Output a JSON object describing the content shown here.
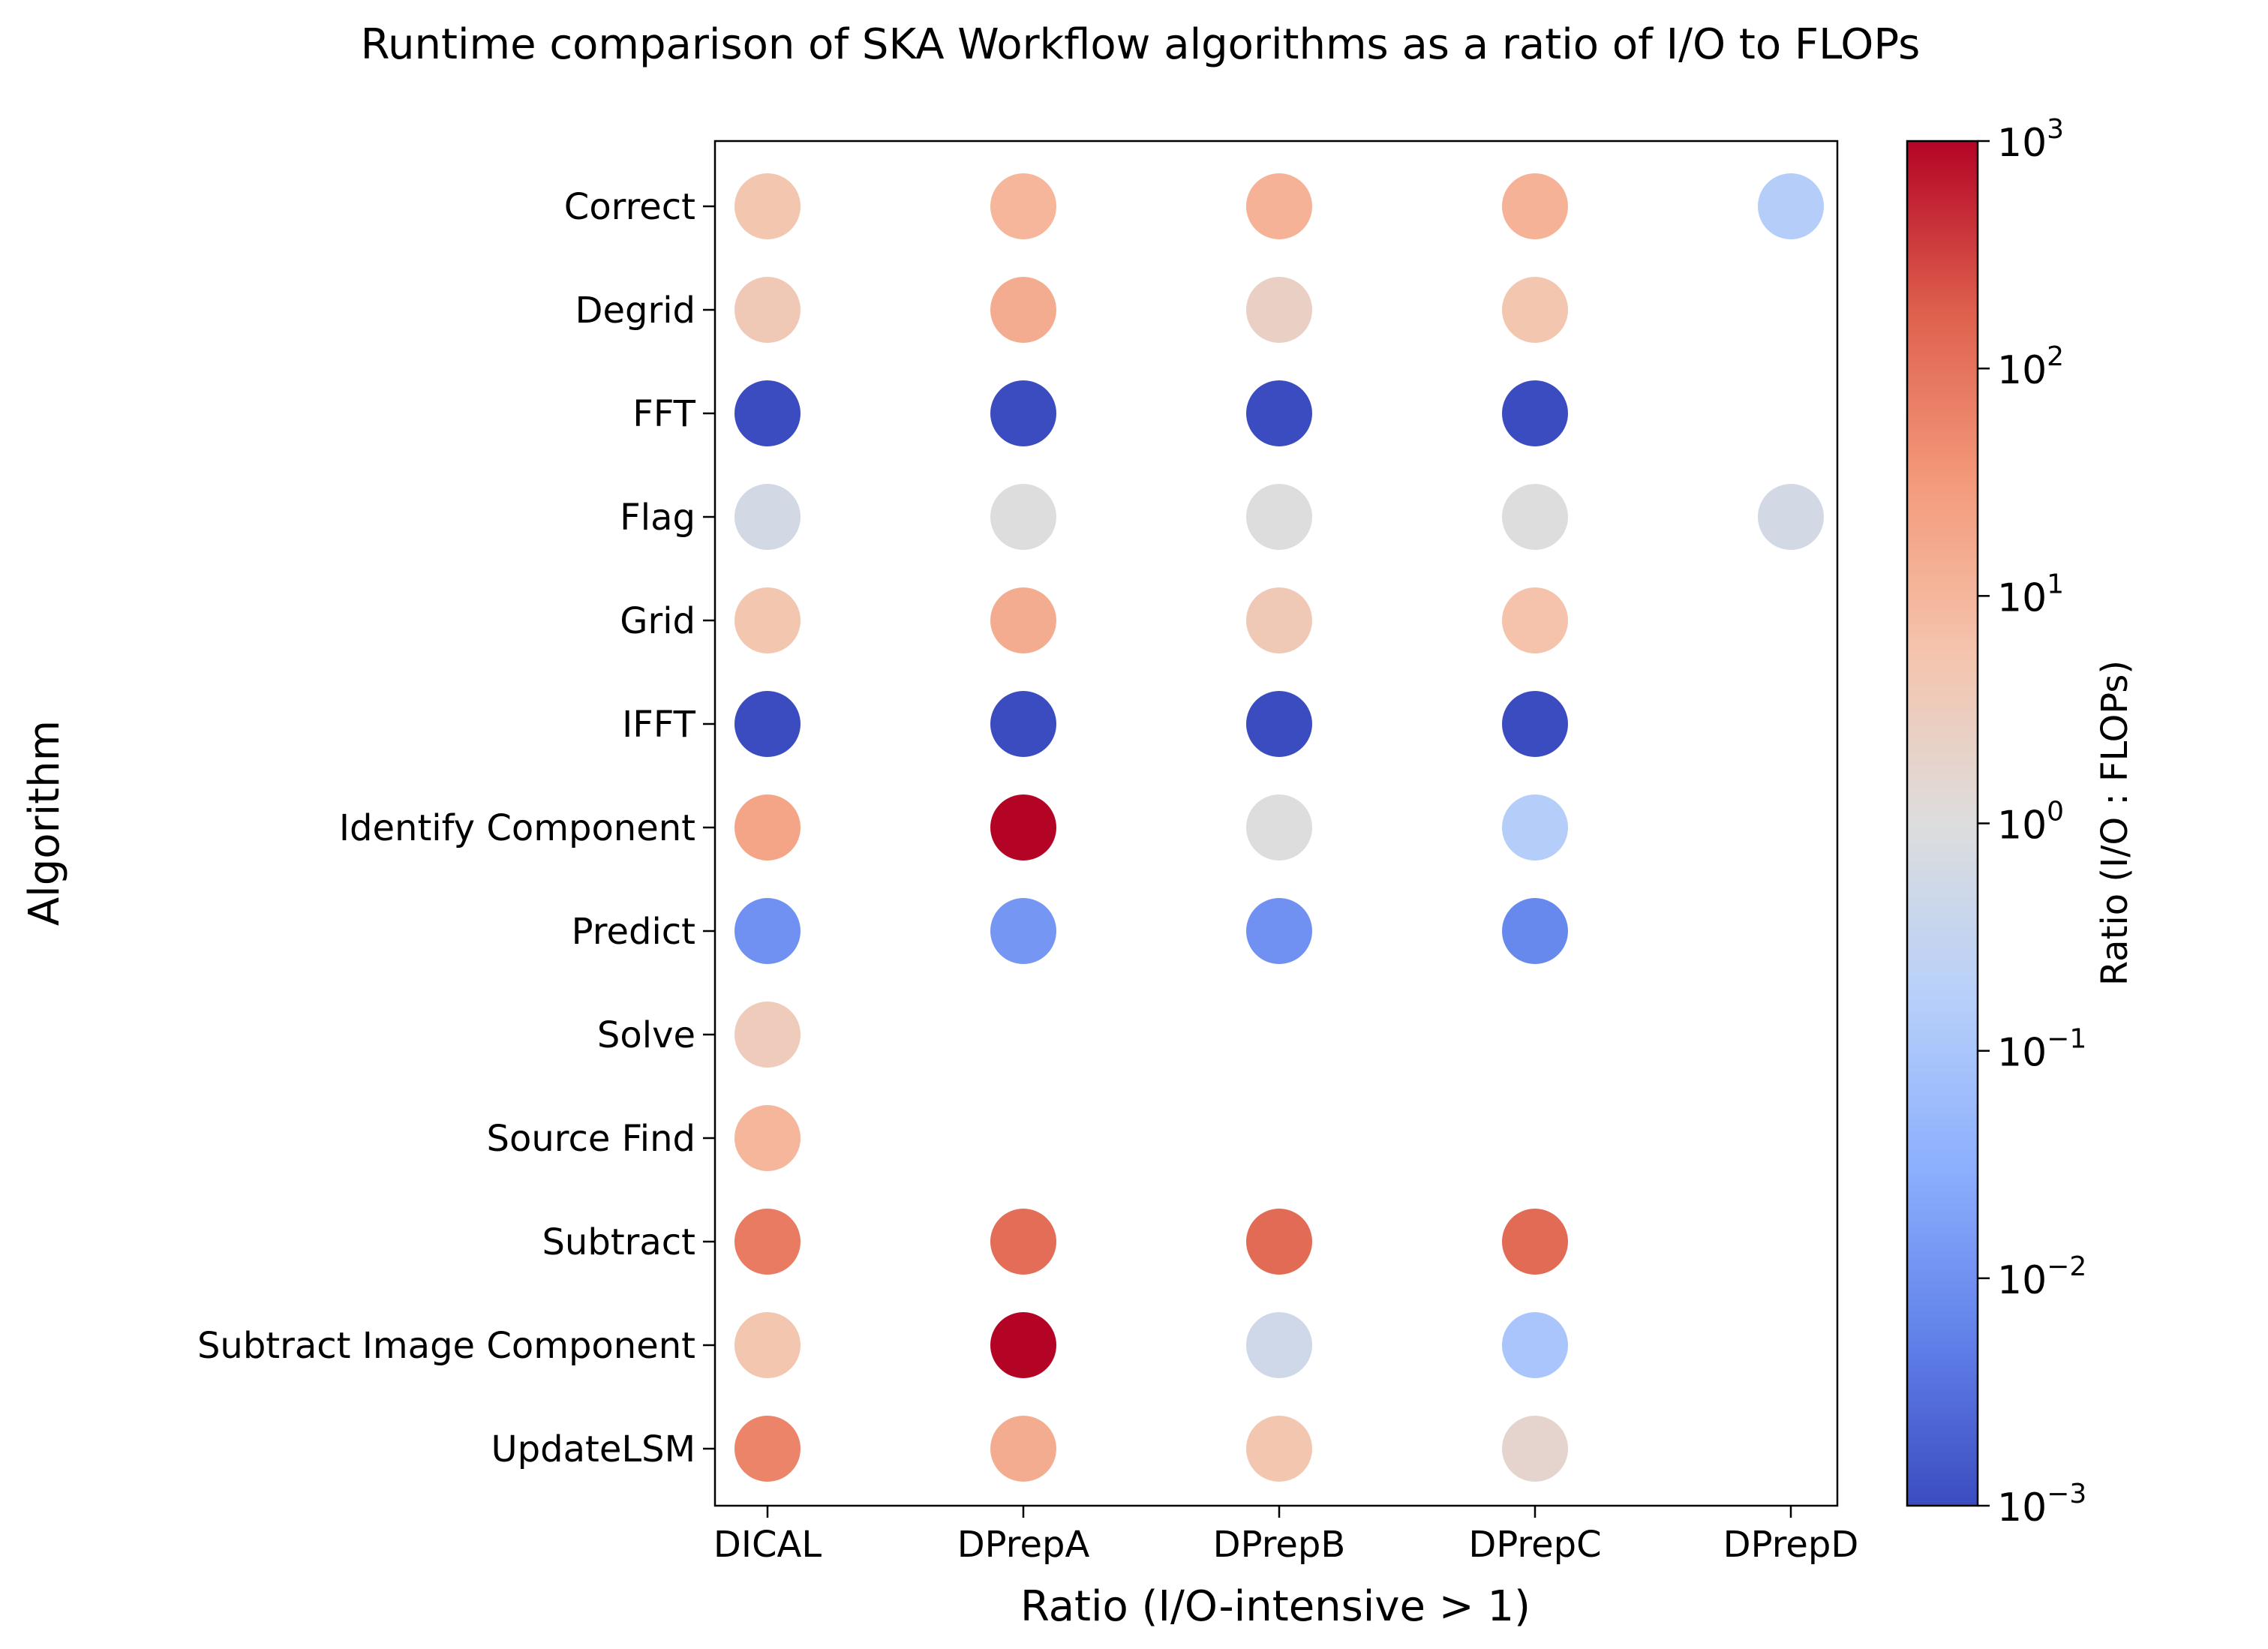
{
  "chart_data": {
    "type": "scatter",
    "title": "Runtime comparison of SKA Workflow algorithms as a ratio of I/O to FLOPs",
    "xlabel": "Ratio (I/O-intensive > 1)",
    "ylabel": "Algorithm",
    "categories_x": [
      "DICAL",
      "DPrepA",
      "DPrepB",
      "DPrepC",
      "DPrepD"
    ],
    "categories_y": [
      "Correct",
      "Degrid",
      "FFT",
      "Flag",
      "Grid",
      "IFFT",
      "Identify Component",
      "Predict",
      "Solve",
      "Source Find",
      "Subtract",
      "Subtract Image Component",
      "UpdateLSM"
    ],
    "colorbar": {
      "label": "Ratio (I/O : FLOPs)",
      "scale": "log",
      "range": [
        0.001,
        1000
      ],
      "ticks": [
        {
          "value": 0.001,
          "base": "10",
          "exp": "−3"
        },
        {
          "value": 0.01,
          "base": "10",
          "exp": "−2"
        },
        {
          "value": 0.1,
          "base": "10",
          "exp": "−1"
        },
        {
          "value": 1,
          "base": "10",
          "exp": "0"
        },
        {
          "value": 10,
          "base": "10",
          "exp": "1"
        },
        {
          "value": 100,
          "base": "10",
          "exp": "2"
        },
        {
          "value": 1000,
          "base": "10",
          "exp": "3"
        }
      ],
      "colormap": "coolwarm"
    },
    "points": [
      {
        "x": "DICAL",
        "y": "Correct",
        "ratio": 5
      },
      {
        "x": "DPrepA",
        "y": "Correct",
        "ratio": 10
      },
      {
        "x": "DPrepB",
        "y": "Correct",
        "ratio": 12
      },
      {
        "x": "DPrepC",
        "y": "Correct",
        "ratio": 12
      },
      {
        "x": "DPrepD",
        "y": "Correct",
        "ratio": 0.15
      },
      {
        "x": "DICAL",
        "y": "Degrid",
        "ratio": 4
      },
      {
        "x": "DPrepA",
        "y": "Degrid",
        "ratio": 15
      },
      {
        "x": "DPrepB",
        "y": "Degrid",
        "ratio": 2.5
      },
      {
        "x": "DPrepC",
        "y": "Degrid",
        "ratio": 5
      },
      {
        "x": "DICAL",
        "y": "FFT",
        "ratio": 0.001
      },
      {
        "x": "DPrepA",
        "y": "FFT",
        "ratio": 0.001
      },
      {
        "x": "DPrepB",
        "y": "FFT",
        "ratio": 0.001
      },
      {
        "x": "DPrepC",
        "y": "FFT",
        "ratio": 0.001
      },
      {
        "x": "DICAL",
        "y": "Flag",
        "ratio": 0.6
      },
      {
        "x": "DPrepA",
        "y": "Flag",
        "ratio": 1
      },
      {
        "x": "DPrepB",
        "y": "Flag",
        "ratio": 1
      },
      {
        "x": "DPrepC",
        "y": "Flag",
        "ratio": 1
      },
      {
        "x": "DPrepD",
        "y": "Flag",
        "ratio": 0.6
      },
      {
        "x": "DICAL",
        "y": "Grid",
        "ratio": 5
      },
      {
        "x": "DPrepA",
        "y": "Grid",
        "ratio": 15
      },
      {
        "x": "DPrepB",
        "y": "Grid",
        "ratio": 4
      },
      {
        "x": "DPrepC",
        "y": "Grid",
        "ratio": 6
      },
      {
        "x": "DICAL",
        "y": "IFFT",
        "ratio": 0.001
      },
      {
        "x": "DPrepA",
        "y": "IFFT",
        "ratio": 0.001
      },
      {
        "x": "DPrepB",
        "y": "IFFT",
        "ratio": 0.001
      },
      {
        "x": "DPrepC",
        "y": "IFFT",
        "ratio": 0.001
      },
      {
        "x": "DICAL",
        "y": "Identify Component",
        "ratio": 20
      },
      {
        "x": "DPrepA",
        "y": "Identify Component",
        "ratio": 1000
      },
      {
        "x": "DPrepB",
        "y": "Identify Component",
        "ratio": 1
      },
      {
        "x": "DPrepC",
        "y": "Identify Component",
        "ratio": 0.15
      },
      {
        "x": "DICAL",
        "y": "Predict",
        "ratio": 0.01
      },
      {
        "x": "DPrepA",
        "y": "Predict",
        "ratio": 0.012
      },
      {
        "x": "DPrepB",
        "y": "Predict",
        "ratio": 0.01
      },
      {
        "x": "DPrepC",
        "y": "Predict",
        "ratio": 0.007
      },
      {
        "x": "DICAL",
        "y": "Solve",
        "ratio": 3.5
      },
      {
        "x": "DICAL",
        "y": "Source Find",
        "ratio": 10
      },
      {
        "x": "DICAL",
        "y": "Subtract",
        "ratio": 80
      },
      {
        "x": "DPrepA",
        "y": "Subtract",
        "ratio": 120
      },
      {
        "x": "DPrepB",
        "y": "Subtract",
        "ratio": 130
      },
      {
        "x": "DPrepC",
        "y": "Subtract",
        "ratio": 130
      },
      {
        "x": "DICAL",
        "y": "Subtract Image Component",
        "ratio": 5
      },
      {
        "x": "DPrepA",
        "y": "Subtract Image Component",
        "ratio": 1000
      },
      {
        "x": "DPrepB",
        "y": "Subtract Image Component",
        "ratio": 0.5
      },
      {
        "x": "DPrepC",
        "y": "Subtract Image Component",
        "ratio": 0.1
      },
      {
        "x": "DICAL",
        "y": "UpdateLSM",
        "ratio": 60
      },
      {
        "x": "DPrepA",
        "y": "UpdateLSM",
        "ratio": 15
      },
      {
        "x": "DPrepB",
        "y": "UpdateLSM",
        "ratio": 5
      },
      {
        "x": "DPrepC",
        "y": "UpdateLSM",
        "ratio": 1.8
      }
    ]
  }
}
